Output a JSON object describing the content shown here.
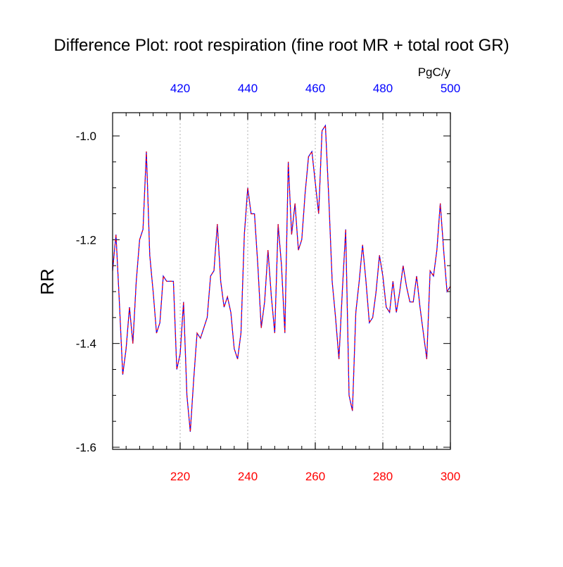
{
  "chart_data": {
    "type": "line",
    "title": "Difference Plot: root respiration (fine root MR + total root GR)",
    "ylabel": "RR",
    "units": "PgC/y",
    "xlim": [
      200,
      300
    ],
    "ylim": [
      -1.6,
      -0.95
    ],
    "x_ticks": [
      220,
      240,
      260,
      280,
      300
    ],
    "top_x_ticks": [
      420,
      440,
      460,
      480,
      500
    ],
    "y_ticks": [
      -1.0,
      -1.2,
      -1.4,
      -1.6
    ],
    "y_tick_labels": [
      "-1.0",
      "-1.2",
      "-1.4",
      "-1.6"
    ],
    "grid": "dotted vertical lines at major bottom ticks",
    "colors": {
      "bottom_axis": "#ff0000",
      "top_axis": "#0000ff",
      "series_primary": "#0000ff",
      "series_secondary": "#ff0000"
    },
    "series": [
      {
        "x": [
          200,
          201,
          202,
          203,
          204,
          205,
          206,
          207,
          208,
          209,
          210,
          211,
          212,
          213,
          214,
          215,
          216,
          217,
          218,
          219,
          220,
          221,
          222,
          223,
          224,
          225,
          226,
          227,
          228,
          229,
          230,
          231,
          232,
          233,
          234,
          235,
          236,
          237,
          238,
          239,
          240,
          241,
          242,
          243,
          244,
          245,
          246,
          247,
          248,
          249,
          250,
          251,
          252,
          253,
          254,
          255,
          256,
          257,
          258,
          259,
          260,
          261,
          262,
          263,
          264,
          265,
          266,
          267,
          268,
          269,
          270,
          271,
          272,
          273,
          274,
          275,
          276,
          277,
          278,
          279,
          280,
          281,
          282,
          283,
          284,
          285,
          286,
          287,
          288,
          289,
          290,
          291,
          292,
          293,
          294,
          295,
          296,
          297,
          298,
          299,
          300
        ],
        "values": [
          -1.26,
          -1.19,
          -1.32,
          -1.46,
          -1.41,
          -1.33,
          -1.4,
          -1.28,
          -1.2,
          -1.18,
          -1.03,
          -1.23,
          -1.3,
          -1.38,
          -1.36,
          -1.27,
          -1.28,
          -1.28,
          -1.28,
          -1.45,
          -1.42,
          -1.32,
          -1.5,
          -1.57,
          -1.47,
          -1.38,
          -1.39,
          -1.37,
          -1.35,
          -1.27,
          -1.26,
          -1.17,
          -1.28,
          -1.33,
          -1.31,
          -1.34,
          -1.41,
          -1.43,
          -1.38,
          -1.19,
          -1.1,
          -1.15,
          -1.15,
          -1.25,
          -1.37,
          -1.32,
          -1.22,
          -1.31,
          -1.38,
          -1.17,
          -1.25,
          -1.38,
          -1.05,
          -1.19,
          -1.13,
          -1.22,
          -1.2,
          -1.11,
          -1.04,
          -1.03,
          -1.09,
          -1.15,
          -0.99,
          -0.98,
          -1.12,
          -1.28,
          -1.35,
          -1.43,
          -1.3,
          -1.18,
          -1.5,
          -1.53,
          -1.34,
          -1.28,
          -1.21,
          -1.28,
          -1.36,
          -1.35,
          -1.3,
          -1.23,
          -1.27,
          -1.33,
          -1.34,
          -1.28,
          -1.34,
          -1.3,
          -1.25,
          -1.29,
          -1.32,
          -1.32,
          -1.27,
          -1.33,
          -1.38,
          -1.43,
          -1.26,
          -1.27,
          -1.22,
          -1.13,
          -1.22,
          -1.3,
          -1.29
        ]
      }
    ]
  }
}
